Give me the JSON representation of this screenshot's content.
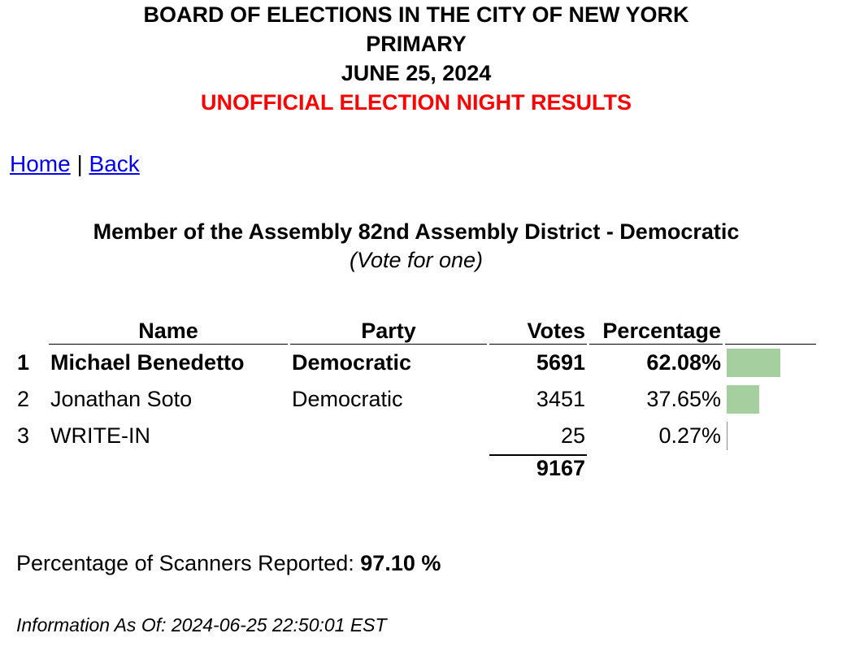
{
  "header": {
    "lines": [
      "BOARD OF ELECTIONS IN THE CITY OF NEW YORK",
      "PRIMARY",
      "JUNE 25, 2024",
      "UNOFFICIAL ELECTION NIGHT RESULTS"
    ]
  },
  "nav": {
    "home": "Home",
    "separator": "|",
    "back": "Back"
  },
  "contest": {
    "title": "Member of the Assembly 82nd Assembly District - Democratic",
    "subtitle": "(Vote for one)"
  },
  "table": {
    "columns": [
      "Name",
      "Party",
      "Votes",
      "Percentage"
    ],
    "rows": [
      {
        "rank": 1,
        "name": "Michael Benedetto",
        "party": "Democratic",
        "votes": 5691,
        "percentage": {
          "value": 62.08,
          "label": "62.08%"
        }
      },
      {
        "rank": 2,
        "name": "Jonathan Soto",
        "party": "Democratic",
        "votes": 3451,
        "percentage": {
          "value": 37.65,
          "label": "37.65%"
        }
      },
      {
        "rank": 3,
        "name": "WRITE-IN",
        "votes": 25,
        "percentage": {
          "value": 0.27,
          "label": "0.27%"
        }
      }
    ],
    "total": 9167
  },
  "scanners": {
    "label": "Percentage of Scanners Reported:",
    "value": "97.10 %"
  },
  "info": "Information As Of: 2024-06-25 22:50:01 EST"
}
